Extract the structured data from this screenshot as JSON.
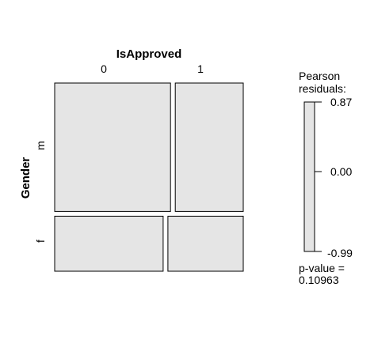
{
  "chart_data": {
    "type": "mosaic",
    "x_variable": "IsApproved",
    "y_variable": "Gender",
    "x_categories": [
      "0",
      "1"
    ],
    "y_categories": [
      "m",
      "f"
    ],
    "proportions": {
      "rows": [
        0.7,
        0.3
      ],
      "within_row_x": {
        "m": [
          0.63,
          0.37
        ],
        "f": [
          0.59,
          0.41
        ]
      }
    },
    "cells": [
      {
        "gender": "m",
        "approved": "0",
        "residual": 0.0
      },
      {
        "gender": "m",
        "approved": "1",
        "residual": 0.0
      },
      {
        "gender": "f",
        "approved": "0",
        "residual": 0.0
      },
      {
        "gender": "f",
        "approved": "1",
        "residual": 0.0
      }
    ],
    "legend": {
      "title_line1": "Pearson",
      "title_line2": "residuals:",
      "max_label": "0.87",
      "mid_label": "0.00",
      "min_label": "-0.99",
      "max": 0.87,
      "min": -0.99
    },
    "pvalue": {
      "label": "p-value =",
      "value": "0.10963"
    },
    "colors": {
      "cell_fill": "#e5e5e5",
      "border": "#000000"
    }
  }
}
